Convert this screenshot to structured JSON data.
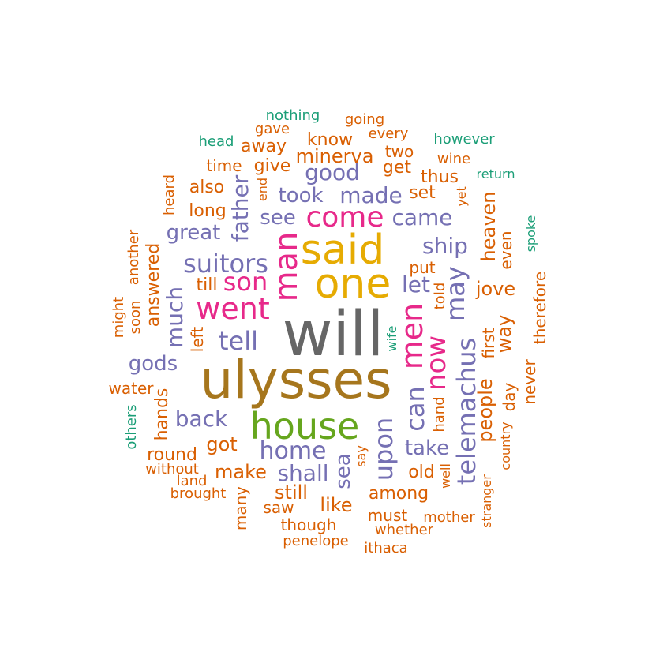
{
  "colors": {
    "gray": "#666666",
    "olive": "#a6761d",
    "gold": "#e6ab02",
    "green": "#66a61e",
    "magenta": "#e7298a",
    "purple": "#7570b3",
    "orange": "#d95f02",
    "teal": "#1b9e77"
  },
  "words": [
    {
      "text": "will",
      "color": "gray"
    },
    {
      "text": "ulysses",
      "color": "olive"
    },
    {
      "text": "said",
      "color": "gold"
    },
    {
      "text": "one",
      "color": "gold"
    },
    {
      "text": "house",
      "color": "green"
    },
    {
      "text": "man",
      "color": "magenta"
    },
    {
      "text": "come",
      "color": "magenta"
    },
    {
      "text": "went",
      "color": "magenta"
    },
    {
      "text": "son",
      "color": "magenta"
    },
    {
      "text": "men",
      "color": "magenta"
    },
    {
      "text": "now",
      "color": "magenta"
    },
    {
      "text": "suitors",
      "color": "purple"
    },
    {
      "text": "telemachus",
      "color": "purple"
    },
    {
      "text": "upon",
      "color": "purple"
    },
    {
      "text": "tell",
      "color": "purple"
    },
    {
      "text": "may",
      "color": "purple"
    },
    {
      "text": "can",
      "color": "purple"
    },
    {
      "text": "home",
      "color": "purple"
    },
    {
      "text": "good",
      "color": "purple"
    },
    {
      "text": "made",
      "color": "purple"
    },
    {
      "text": "came",
      "color": "purple"
    },
    {
      "text": "ship",
      "color": "purple"
    },
    {
      "text": "father",
      "color": "purple"
    },
    {
      "text": "much",
      "color": "purple"
    },
    {
      "text": "shall",
      "color": "purple"
    },
    {
      "text": "let",
      "color": "purple"
    },
    {
      "text": "back",
      "color": "purple"
    },
    {
      "text": "great",
      "color": "purple"
    },
    {
      "text": "see",
      "color": "purple"
    },
    {
      "text": "took",
      "color": "purple"
    },
    {
      "text": "gods",
      "color": "purple"
    },
    {
      "text": "take",
      "color": "purple"
    },
    {
      "text": "sea",
      "color": "purple"
    },
    {
      "text": "minerva",
      "color": "orange"
    },
    {
      "text": "heaven",
      "color": "orange"
    },
    {
      "text": "way",
      "color": "orange"
    },
    {
      "text": "jove",
      "color": "orange"
    },
    {
      "text": "people",
      "color": "orange"
    },
    {
      "text": "make",
      "color": "orange"
    },
    {
      "text": "got",
      "color": "orange"
    },
    {
      "text": "among",
      "color": "orange"
    },
    {
      "text": "still",
      "color": "orange"
    },
    {
      "text": "like",
      "color": "orange"
    },
    {
      "text": "old",
      "color": "orange"
    },
    {
      "text": "answered",
      "color": "orange"
    },
    {
      "text": "away",
      "color": "orange"
    },
    {
      "text": "know",
      "color": "orange"
    },
    {
      "text": "give",
      "color": "orange"
    },
    {
      "text": "get",
      "color": "orange"
    },
    {
      "text": "thus",
      "color": "orange"
    },
    {
      "text": "set",
      "color": "orange"
    },
    {
      "text": "also",
      "color": "orange"
    },
    {
      "text": "long",
      "color": "orange"
    },
    {
      "text": "two",
      "color": "orange"
    },
    {
      "text": "time",
      "color": "orange"
    },
    {
      "text": "round",
      "color": "orange"
    },
    {
      "text": "hands",
      "color": "orange"
    },
    {
      "text": "till",
      "color": "orange"
    },
    {
      "text": "left",
      "color": "orange"
    },
    {
      "text": "even",
      "color": "orange"
    },
    {
      "text": "therefore",
      "color": "orange"
    },
    {
      "text": "first",
      "color": "orange"
    },
    {
      "text": "day",
      "color": "orange"
    },
    {
      "text": "never",
      "color": "orange"
    },
    {
      "text": "saw",
      "color": "orange"
    },
    {
      "text": "though",
      "color": "orange"
    },
    {
      "text": "must",
      "color": "orange"
    },
    {
      "text": "water",
      "color": "orange"
    },
    {
      "text": "many",
      "color": "orange"
    },
    {
      "text": "put",
      "color": "orange"
    },
    {
      "text": "going",
      "color": "orange"
    },
    {
      "text": "every",
      "color": "orange"
    },
    {
      "text": "wine",
      "color": "orange"
    },
    {
      "text": "gave",
      "color": "orange"
    },
    {
      "text": "heard",
      "color": "orange"
    },
    {
      "text": "another",
      "color": "orange"
    },
    {
      "text": "might",
      "color": "orange"
    },
    {
      "text": "soon",
      "color": "orange"
    },
    {
      "text": "end",
      "color": "orange"
    },
    {
      "text": "yet",
      "color": "orange"
    },
    {
      "text": "told",
      "color": "orange"
    },
    {
      "text": "hand",
      "color": "orange"
    },
    {
      "text": "say",
      "color": "orange"
    },
    {
      "text": "well",
      "color": "orange"
    },
    {
      "text": "country",
      "color": "orange"
    },
    {
      "text": "stranger",
      "color": "orange"
    },
    {
      "text": "without",
      "color": "orange"
    },
    {
      "text": "land",
      "color": "orange"
    },
    {
      "text": "brought",
      "color": "orange"
    },
    {
      "text": "penelope",
      "color": "orange"
    },
    {
      "text": "whether",
      "color": "orange"
    },
    {
      "text": "mother",
      "color": "orange"
    },
    {
      "text": "ithaca",
      "color": "orange"
    },
    {
      "text": "nothing",
      "color": "teal"
    },
    {
      "text": "head",
      "color": "teal"
    },
    {
      "text": "however",
      "color": "teal"
    },
    {
      "text": "return",
      "color": "teal"
    },
    {
      "text": "spoke",
      "color": "teal"
    },
    {
      "text": "wife",
      "color": "teal"
    },
    {
      "text": "others",
      "color": "teal"
    }
  ]
}
